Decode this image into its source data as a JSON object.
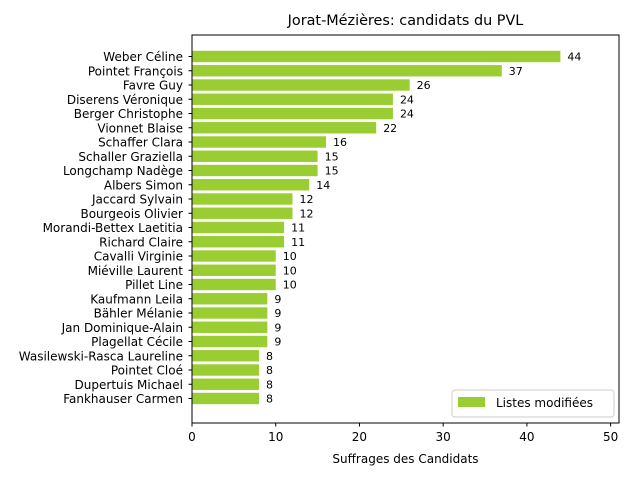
{
  "chart_data": {
    "type": "bar",
    "orientation": "horizontal",
    "title": "Jorat-Mézières: candidats du PVL",
    "xlabel": "Suffrages des Candidats",
    "ylabel": "",
    "xlim": [
      0,
      51
    ],
    "xticks": [
      0,
      10,
      20,
      30,
      40,
      50
    ],
    "grid": false,
    "legend_position": "lower-right",
    "bar_color": "#9acd32",
    "categories": [
      "Weber Céline",
      "Pointet François",
      "Favre Guy",
      "Diserens Véronique",
      "Berger Christophe",
      "Vionnet Blaise",
      "Schaffer Clara",
      "Schaller Graziella",
      "Longchamp Nadège",
      "Albers Simon",
      "Jaccard Sylvain",
      "Bourgeois Olivier",
      "Morandi-Bettex Laetitia",
      "Richard Claire",
      "Cavalli Virginie",
      "Miéville Laurent",
      "Pillet Line",
      "Kaufmann Leila",
      "Bähler Mélanie",
      "Jan Dominique-Alain",
      "Plagellat Cécile",
      "Wasilewski-Rasca Laureline",
      "Pointet Cloé",
      "Dupertuis Michael",
      "Fankhauser Carmen"
    ],
    "series": [
      {
        "name": "Listes modifiées",
        "values": [
          44,
          37,
          26,
          24,
          24,
          22,
          16,
          15,
          15,
          14,
          12,
          12,
          11,
          11,
          10,
          10,
          10,
          9,
          9,
          9,
          9,
          8,
          8,
          8,
          8
        ]
      }
    ]
  }
}
